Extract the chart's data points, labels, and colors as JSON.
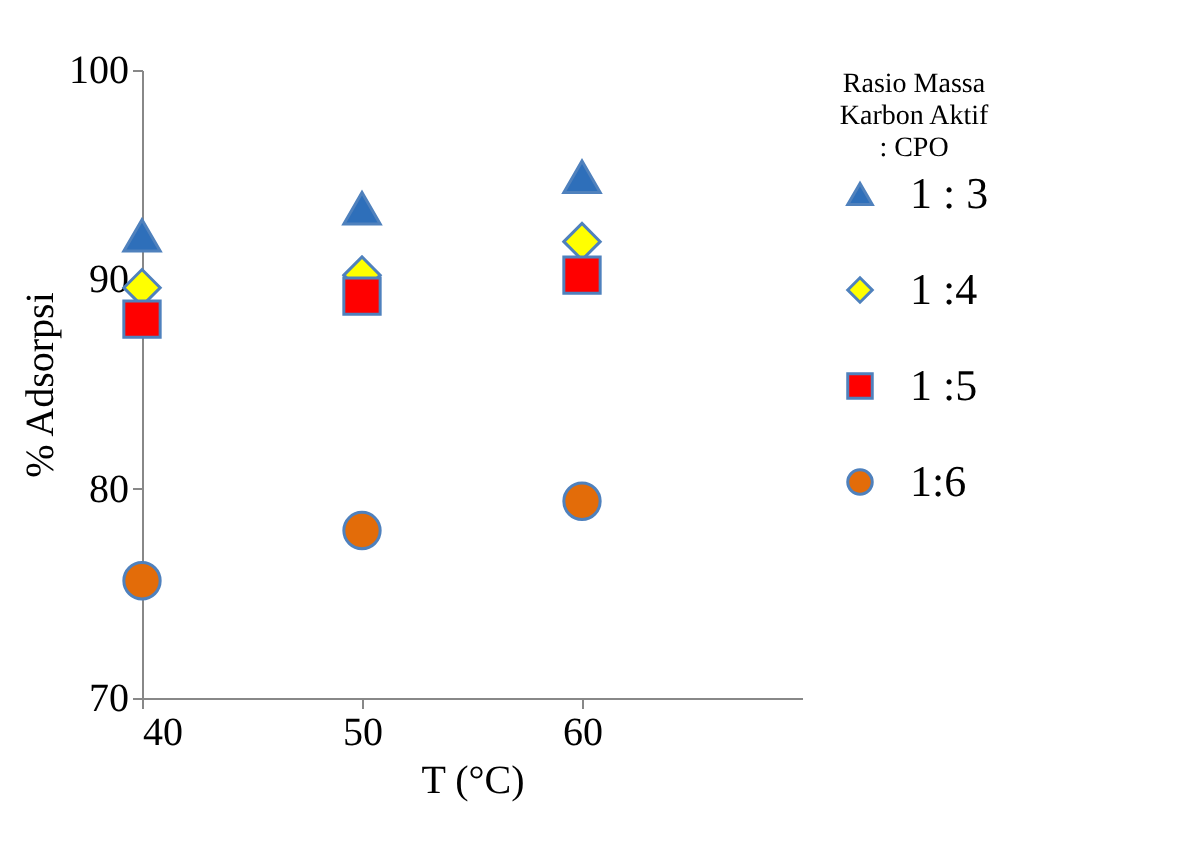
{
  "chart_data": {
    "type": "scatter",
    "xlabel": "T (°C)",
    "ylabel": "% Adsorpsi",
    "legend_title": "Rasio Massa Karbon Aktif : CPO",
    "x": [
      40,
      50,
      60
    ],
    "xlim": [
      40,
      70
    ],
    "xticks": [
      40,
      50,
      60
    ],
    "ylim": [
      70,
      100
    ],
    "yticks": [
      70,
      80,
      90,
      100
    ],
    "grid": false,
    "legend": "right",
    "series": [
      {
        "name": "1 : 3",
        "color": "#2e6fba",
        "marker": "triangle",
        "values": [
          92.1,
          93.4,
          94.9
        ]
      },
      {
        "name": "1 :4",
        "color": "#ffff00",
        "marker": "diamond",
        "values": [
          89.6,
          90.2,
          91.8
        ]
      },
      {
        "name": "1 :5",
        "color": "#ff0000",
        "marker": "square",
        "values": [
          88.1,
          89.2,
          90.2
        ]
      },
      {
        "name": "1:6",
        "color": "#e36c09",
        "marker": "circle",
        "values": [
          75.6,
          78.0,
          79.4
        ]
      }
    ]
  }
}
